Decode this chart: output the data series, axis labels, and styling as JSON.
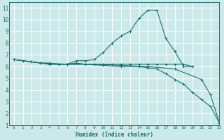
{
  "xlabel": "Humidex (Indice chaleur)",
  "ylabel": "",
  "bg_color": "#cce9e9",
  "grid_color": "#ffffff",
  "line_color": "#1a7070",
  "xlim": [
    -0.5,
    23
  ],
  "ylim": [
    1,
    11.5
  ],
  "xticks": [
    0,
    1,
    2,
    3,
    4,
    5,
    6,
    7,
    8,
    9,
    10,
    11,
    12,
    13,
    14,
    15,
    16,
    17,
    18,
    19,
    20,
    21,
    22,
    23
  ],
  "yticks": [
    1,
    2,
    3,
    4,
    5,
    6,
    7,
    8,
    9,
    10,
    11
  ],
  "series": [
    {
      "x": [
        0,
        1,
        2,
        3,
        4,
        5,
        6,
        7,
        8,
        9,
        10,
        11,
        12,
        13,
        14,
        15,
        16,
        17,
        18,
        19,
        20
      ],
      "y": [
        6.6,
        6.5,
        6.4,
        6.3,
        6.3,
        6.2,
        6.2,
        6.5,
        6.5,
        6.6,
        7.2,
        8.0,
        8.6,
        9.0,
        10.1,
        10.8,
        10.8,
        8.4,
        7.3,
        6.0,
        6.0
      ]
    },
    {
      "x": [
        0,
        2,
        3,
        4,
        5,
        6,
        7,
        8,
        9,
        10,
        11,
        12,
        13,
        14,
        15,
        16,
        17,
        18,
        19,
        20
      ],
      "y": [
        6.6,
        6.4,
        6.3,
        6.2,
        6.2,
        6.2,
        6.3,
        6.2,
        6.2,
        6.2,
        6.2,
        6.2,
        6.2,
        6.2,
        6.2,
        6.2,
        6.2,
        6.2,
        6.2,
        6.0
      ]
    },
    {
      "x": [
        0,
        2,
        4,
        6,
        8,
        10,
        12,
        14,
        15,
        16,
        17,
        18,
        19,
        20,
        21,
        22,
        23
      ],
      "y": [
        6.6,
        6.4,
        6.2,
        6.2,
        6.2,
        6.1,
        6.0,
        6.0,
        5.9,
        5.8,
        5.4,
        4.9,
        4.5,
        3.8,
        3.2,
        2.6,
        1.2
      ]
    },
    {
      "x": [
        0,
        3,
        6,
        9,
        12,
        15,
        18,
        21,
        22,
        23
      ],
      "y": [
        6.6,
        6.3,
        6.2,
        6.2,
        6.1,
        6.0,
        5.8,
        4.9,
        3.6,
        1.2
      ]
    }
  ]
}
